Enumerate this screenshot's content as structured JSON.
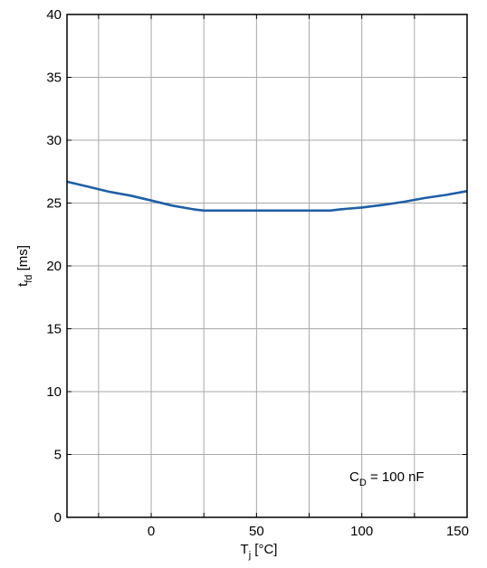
{
  "chart_data": {
    "type": "line",
    "title": "",
    "xlabel_main": "T",
    "xlabel_sub": "j",
    "xlabel_unit": " [°C]",
    "ylabel_main": "t",
    "ylabel_sub": "fd",
    "ylabel_unit": " [ms]",
    "xlim": [
      -40,
      150
    ],
    "ylim": [
      0,
      40
    ],
    "grid": true,
    "x_ticks": [
      0,
      50,
      100,
      150
    ],
    "x_tick_labels": [
      "0",
      "50",
      "100",
      "150"
    ],
    "x_gridlines": [
      -25,
      0,
      25,
      50,
      75,
      100,
      125
    ],
    "y_ticks": [
      0,
      5,
      10,
      15,
      20,
      25,
      30,
      35,
      40
    ],
    "y_tick_labels": [
      "0",
      "5",
      "10",
      "15",
      "20",
      "25",
      "30",
      "35",
      "40"
    ],
    "annotation": {
      "main": "C",
      "sub": "D",
      "rest": " = 100 nF"
    },
    "line_color": "#1f5fa6",
    "series": [
      {
        "x": [
          -40,
          -30,
          -20,
          -10,
          0,
          10,
          20,
          25,
          30,
          40,
          50,
          60,
          70,
          80,
          85,
          90,
          100,
          110,
          120,
          130,
          140,
          150
        ],
        "y": [
          26.7,
          26.3,
          25.9,
          25.6,
          25.2,
          24.8,
          24.5,
          24.4,
          24.4,
          24.4,
          24.4,
          24.4,
          24.4,
          24.4,
          24.4,
          24.5,
          24.65,
          24.85,
          25.1,
          25.4,
          25.65,
          25.95
        ]
      }
    ]
  }
}
